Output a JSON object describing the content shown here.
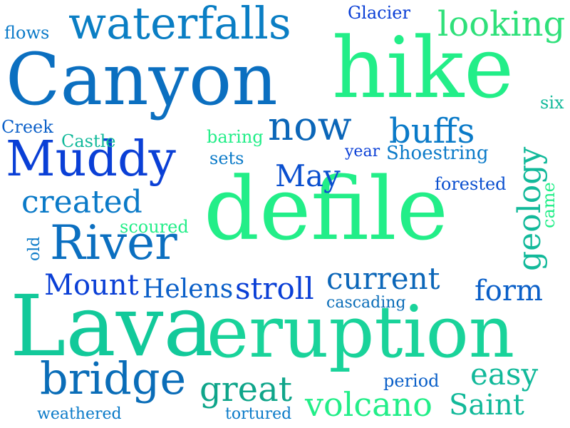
{
  "words": [
    {
      "id": "canyon",
      "text": "Canyon",
      "color": "#0b6fc0"
    },
    {
      "id": "hike",
      "text": "hike",
      "color": "#22ee88"
    },
    {
      "id": "defile",
      "text": "defile",
      "color": "#22ee88"
    },
    {
      "id": "lava",
      "text": "Lava",
      "color": "#12c99a"
    },
    {
      "id": "eruption",
      "text": "eruption",
      "color": "#19d39a"
    },
    {
      "id": "waterfalls",
      "text": "waterfalls",
      "color": "#0a7ec4"
    },
    {
      "id": "muddy",
      "text": "Muddy",
      "color": "#0a3fd6"
    },
    {
      "id": "river",
      "text": "River",
      "color": "#0b6fc0"
    },
    {
      "id": "now",
      "text": "now",
      "color": "#0b66b8"
    },
    {
      "id": "looking",
      "text": "looking",
      "color": "#2fe07a"
    },
    {
      "id": "bridge",
      "text": "bridge",
      "color": "#0a6db8"
    },
    {
      "id": "great",
      "text": "great",
      "color": "#0fa58a"
    },
    {
      "id": "volcano",
      "text": "volcano",
      "color": "#22ee88"
    },
    {
      "id": "saint",
      "text": "Saint",
      "color": "#12b99a"
    },
    {
      "id": "buffs",
      "text": "buffs",
      "color": "#0a7ac8"
    },
    {
      "id": "created",
      "text": "created",
      "color": "#0a7ac8"
    },
    {
      "id": "may",
      "text": "May",
      "color": "#0a4fcf"
    },
    {
      "id": "geology",
      "text": "geology",
      "color": "#12b99a"
    },
    {
      "id": "stroll",
      "text": "stroll",
      "color": "#0a3fd6"
    },
    {
      "id": "current",
      "text": "current",
      "color": "#0b66b8"
    },
    {
      "id": "form",
      "text": "form",
      "color": "#0a5fc8"
    },
    {
      "id": "mount",
      "text": "Mount",
      "color": "#0a3fd6"
    },
    {
      "id": "helens",
      "text": "Helens",
      "color": "#0a5fc8"
    },
    {
      "id": "easy",
      "text": "easy",
      "color": "#12b99a"
    },
    {
      "id": "glacier",
      "text": "Glacier",
      "color": "#0a3fd6"
    },
    {
      "id": "flows",
      "text": "flows",
      "color": "#0a7ac8"
    },
    {
      "id": "six",
      "text": "six",
      "color": "#12b99a"
    },
    {
      "id": "creek",
      "text": "Creek",
      "color": "#0a5fc8"
    },
    {
      "id": "castle",
      "text": "Castle",
      "color": "#12b99a"
    },
    {
      "id": "baring",
      "text": "baring",
      "color": "#22ee88"
    },
    {
      "id": "sets",
      "text": "sets",
      "color": "#0a7ac8"
    },
    {
      "id": "year",
      "text": "year",
      "color": "#0a3fd6"
    },
    {
      "id": "shoestring",
      "text": "Shoestring",
      "color": "#0a7ac8"
    },
    {
      "id": "forested",
      "text": "forested",
      "color": "#0a4fcf"
    },
    {
      "id": "came",
      "text": "came",
      "color": "#22ee88"
    },
    {
      "id": "scoured",
      "text": "scoured",
      "color": "#22ee88"
    },
    {
      "id": "old",
      "text": "old",
      "color": "#0a7ac8"
    },
    {
      "id": "cascading",
      "text": "cascading",
      "color": "#0a6db8"
    },
    {
      "id": "period",
      "text": "period",
      "color": "#0a5fc8"
    },
    {
      "id": "weathered",
      "text": "weathered",
      "color": "#0a7ac8"
    },
    {
      "id": "tortured",
      "text": "tortured",
      "color": "#0a7ac8"
    }
  ]
}
